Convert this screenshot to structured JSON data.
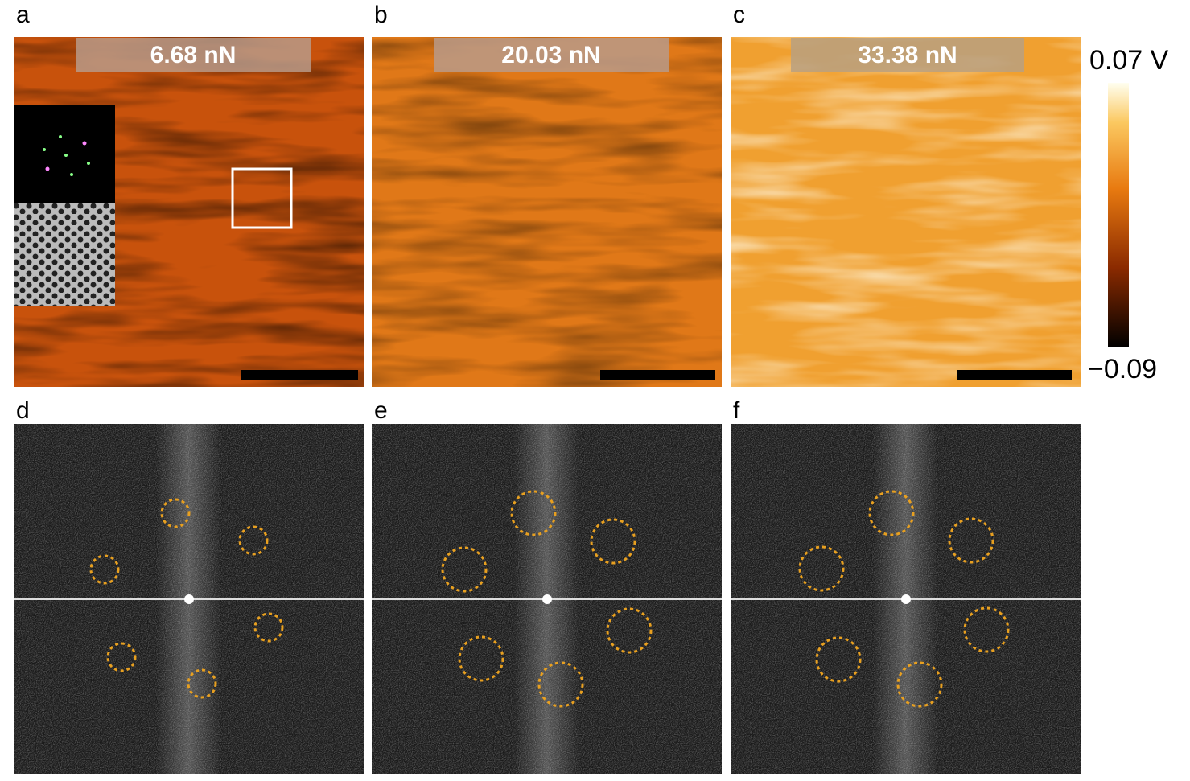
{
  "panels": [
    {
      "label": "a",
      "force": "6.68 nN"
    },
    {
      "label": "b",
      "force": "20.03 nN"
    },
    {
      "label": "c",
      "force": "33.38 nN"
    },
    {
      "label": "d"
    },
    {
      "label": "e"
    },
    {
      "label": "f"
    }
  ],
  "colorbar": {
    "max": "0.07 V",
    "min": "−0.09"
  }
}
